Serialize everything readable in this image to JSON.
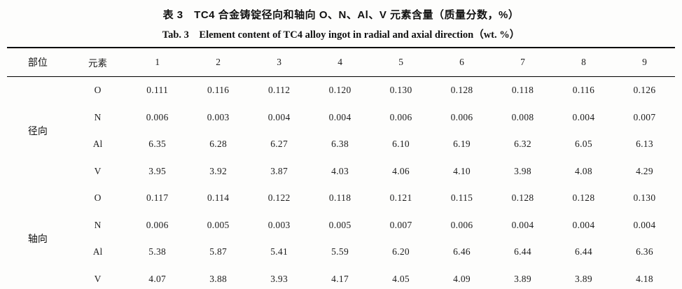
{
  "table": {
    "title_zh": "表 3　TC4 合金铸锭径向和轴向 O、N、Al、V 元素含量（质量分数，%）",
    "title_en": "Tab. 3　Element content of TC4 alloy ingot in radial and axial direction（wt. %）",
    "headers": [
      "部位",
      "元素",
      "1",
      "2",
      "3",
      "4",
      "5",
      "6",
      "7",
      "8",
      "9"
    ],
    "groups": [
      {
        "label": "径向",
        "rows": [
          {
            "element": "O",
            "values": [
              "0.111",
              "0.116",
              "0.112",
              "0.120",
              "0.130",
              "0.128",
              "0.118",
              "0.116",
              "0.126"
            ]
          },
          {
            "element": "N",
            "values": [
              "0.006",
              "0.003",
              "0.004",
              "0.004",
              "0.006",
              "0.006",
              "0.008",
              "0.004",
              "0.007"
            ]
          },
          {
            "element": "Al",
            "values": [
              "6.35",
              "6.28",
              "6.27",
              "6.38",
              "6.10",
              "6.19",
              "6.32",
              "6.05",
              "6.13"
            ]
          },
          {
            "element": "V",
            "values": [
              "3.95",
              "3.92",
              "3.87",
              "4.03",
              "4.06",
              "4.10",
              "3.98",
              "4.08",
              "4.29"
            ]
          }
        ]
      },
      {
        "label": "轴向",
        "rows": [
          {
            "element": "O",
            "values": [
              "0.117",
              "0.114",
              "0.122",
              "0.118",
              "0.121",
              "0.115",
              "0.128",
              "0.128",
              "0.130"
            ]
          },
          {
            "element": "N",
            "values": [
              "0.006",
              "0.005",
              "0.003",
              "0.005",
              "0.007",
              "0.006",
              "0.004",
              "0.004",
              "0.004"
            ]
          },
          {
            "element": "Al",
            "values": [
              "5.38",
              "5.87",
              "5.41",
              "5.59",
              "6.20",
              "6.46",
              "6.44",
              "6.44",
              "6.36"
            ]
          },
          {
            "element": "V",
            "values": [
              "4.07",
              "3.88",
              "3.93",
              "4.17",
              "4.05",
              "4.09",
              "3.89",
              "3.89",
              "4.18"
            ]
          }
        ]
      }
    ]
  }
}
